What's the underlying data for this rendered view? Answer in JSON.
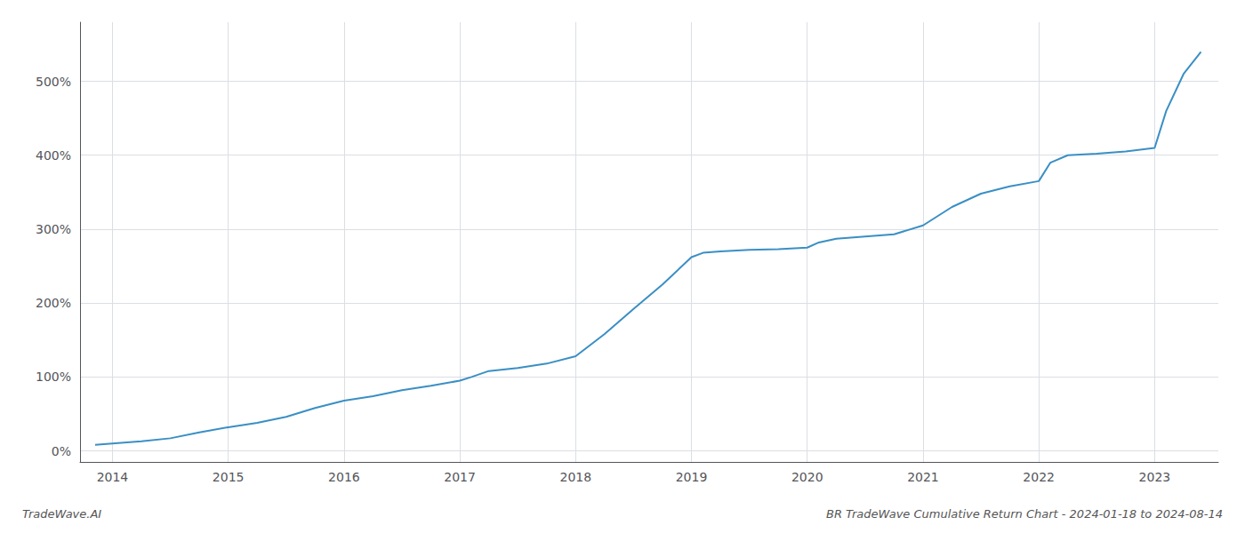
{
  "chart_data": {
    "type": "line",
    "title": "BR TradeWave Cumulative Return Chart - 2024-01-18 to 2024-08-14",
    "annotations": [
      "TradeWave.AI"
    ],
    "x": [
      2013.85,
      2014.0,
      2014.25,
      2014.5,
      2014.75,
      2015.0,
      2015.25,
      2015.5,
      2015.75,
      2016.0,
      2016.25,
      2016.5,
      2016.75,
      2017.0,
      2017.1,
      2017.25,
      2017.5,
      2017.75,
      2018.0,
      2018.25,
      2018.5,
      2018.75,
      2019.0,
      2019.1,
      2019.25,
      2019.5,
      2019.75,
      2020.0,
      2020.1,
      2020.25,
      2020.5,
      2020.75,
      2021.0,
      2021.25,
      2021.5,
      2021.75,
      2022.0,
      2022.1,
      2022.25,
      2022.5,
      2022.75,
      2023.0,
      2023.1,
      2023.25,
      2023.4
    ],
    "values": [
      8,
      10,
      13,
      17,
      25,
      32,
      38,
      46,
      58,
      68,
      74,
      82,
      88,
      95,
      100,
      108,
      112,
      118,
      128,
      158,
      192,
      225,
      262,
      268,
      270,
      272,
      273,
      275,
      282,
      287,
      290,
      293,
      305,
      330,
      348,
      358,
      365,
      390,
      400,
      402,
      405,
      410,
      460,
      510,
      540
    ],
    "color": "#3a8fc4",
    "xlim": [
      2013.72,
      2023.55
    ],
    "xticks": [
      2014,
      2015,
      2016,
      2017,
      2018,
      2019,
      2020,
      2021,
      2022,
      2023
    ],
    "ylim": [
      -15,
      580
    ],
    "yticks": [
      {
        "value": 0,
        "label": "0%"
      },
      {
        "value": 100,
        "label": "100%"
      },
      {
        "value": 200,
        "label": "200%"
      },
      {
        "value": 300,
        "label": "300%"
      },
      {
        "value": 400,
        "label": "400%"
      },
      {
        "value": 500,
        "label": "500%"
      }
    ],
    "grid": true
  }
}
